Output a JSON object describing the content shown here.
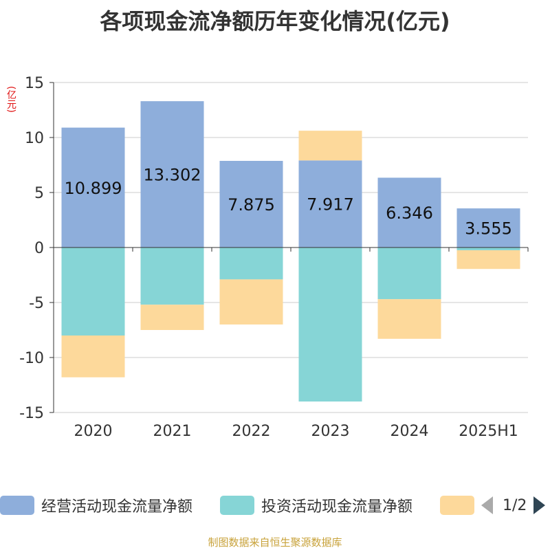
{
  "title": "各项现金流净额历年变化情况(亿元)",
  "unit_label": "(亿元)",
  "source": "制图数据来自恒生聚源数据库",
  "pager": {
    "text": "1/2"
  },
  "chart_data": {
    "type": "bar",
    "stacked": true,
    "title": "各项现金流净额历年变化情况(亿元)",
    "ylabel": "(亿元)",
    "categories": [
      "2020",
      "2021",
      "2022",
      "2023",
      "2024",
      "2025H1"
    ],
    "ylim": [
      -15,
      15
    ],
    "yticks": [
      15,
      10,
      5,
      0,
      -5,
      -10,
      -15
    ],
    "grid": true,
    "legend_position": "bottom",
    "series": [
      {
        "name": "经营活动现金流量净额",
        "color": "#8eaedb",
        "values": [
          10.899,
          13.302,
          7.875,
          7.917,
          6.346,
          3.555
        ],
        "labels": [
          "10.899",
          "13.302",
          "7.875",
          "7.917",
          "6.346",
          "3.555"
        ]
      },
      {
        "name": "投资活动现金流量净额",
        "color": "#86d5d6",
        "values": [
          -8.0,
          -5.2,
          -2.9,
          -14.0,
          -4.7,
          -0.25
        ]
      },
      {
        "name": "",
        "color": "#fdd99b",
        "values": [
          -3.8,
          -2.3,
          -4.1,
          2.7,
          -3.6,
          -1.7
        ]
      }
    ]
  }
}
